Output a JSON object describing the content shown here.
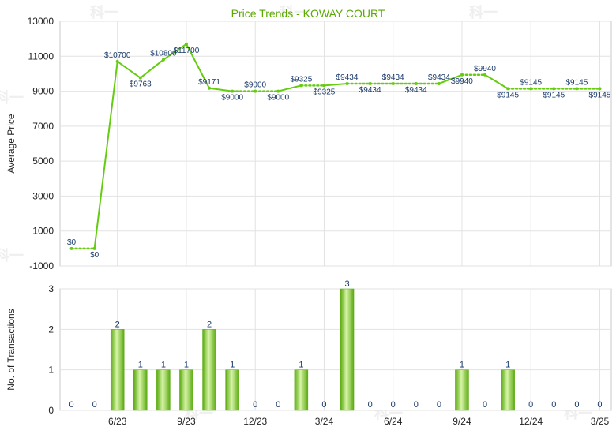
{
  "chart_data": [
    {
      "type": "line",
      "title": "Price Trends - KOWAY COURT",
      "ylabel": "Average Price",
      "xlabel": "",
      "ylim": [
        -1000,
        13000
      ],
      "yticks": [
        -1000,
        1000,
        3000,
        5000,
        7000,
        9000,
        11000,
        13000
      ],
      "grid": true,
      "x": [
        "4/23",
        "5/23",
        "6/23",
        "7/23",
        "8/23",
        "9/23",
        "10/23",
        "11/23",
        "12/23",
        "1/24",
        "2/24",
        "3/24",
        "4/24",
        "5/24",
        "6/24",
        "7/24",
        "8/24",
        "9/24",
        "10/24",
        "11/24",
        "12/24",
        "1/25",
        "2/25",
        "3/25"
      ],
      "values": [
        0,
        0,
        10700,
        9763,
        10800,
        11700,
        9171,
        9000,
        9000,
        9000,
        9325,
        9325,
        9434,
        9434,
        9434,
        9434,
        9434,
        9940,
        9940,
        9145,
        9145,
        9145,
        9145,
        9145
      ],
      "labels": [
        "$0",
        "$0",
        "$10700",
        "$9763",
        "$10800",
        "$11700",
        "$9171",
        "$9000",
        "$9000",
        "$9000",
        "$9325",
        "$9325",
        "$9434",
        "$9434",
        "$9434",
        "$9434",
        "$9434",
        "$9940",
        "$9940",
        "$9145",
        "$9145",
        "$9145",
        "$9145",
        "$9145"
      ],
      "has_transactions": [
        false,
        false,
        true,
        true,
        true,
        true,
        true,
        true,
        false,
        false,
        true,
        false,
        true,
        false,
        false,
        false,
        false,
        true,
        false,
        true,
        false,
        false,
        false,
        false
      ],
      "colors": {
        "line": "#66cc11",
        "label": "#1a3a6b",
        "title": "#5aaa00"
      }
    },
    {
      "type": "bar",
      "ylabel": "No. of Transactions",
      "ylim": [
        0,
        3
      ],
      "yticks": [
        0,
        1,
        2,
        3
      ],
      "grid": true,
      "categories": [
        "4/23",
        "5/23",
        "6/23",
        "7/23",
        "8/23",
        "9/23",
        "10/23",
        "11/23",
        "12/23",
        "1/24",
        "2/24",
        "3/24",
        "4/24",
        "5/24",
        "6/24",
        "7/24",
        "8/24",
        "9/24",
        "10/24",
        "11/24",
        "12/24",
        "1/25",
        "2/25",
        "3/25"
      ],
      "values": [
        0,
        0,
        2,
        1,
        1,
        1,
        2,
        1,
        0,
        0,
        1,
        0,
        3,
        0,
        0,
        0,
        0,
        1,
        0,
        1,
        0,
        0,
        0,
        0
      ],
      "xtick_labels": [
        "6/23",
        "9/23",
        "12/23",
        "3/24",
        "6/24",
        "9/24",
        "12/24",
        "3/25"
      ],
      "xtick_index": [
        2,
        5,
        8,
        11,
        14,
        17,
        20,
        23
      ],
      "colors": {
        "bar_dark": "#5aaa10",
        "bar_light": "#d8f4a8",
        "label": "#1a3a6b"
      }
    }
  ],
  "watermark": "科一"
}
